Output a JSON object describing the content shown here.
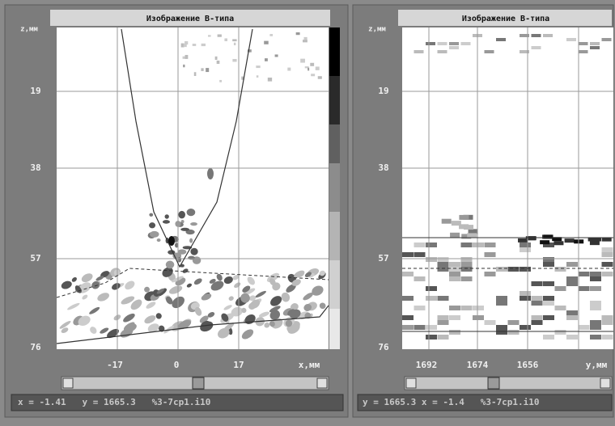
{
  "panels": [
    {
      "title": "Изображение B-типа",
      "z_axis_label": "z,мм",
      "z_ticks": [
        "19",
        "38",
        "57",
        "76"
      ],
      "h_ticks": [
        "-17",
        "0",
        "17"
      ],
      "h_axis_label": "x,мм",
      "status": "x = -1.41   y = 1665.3   %3-7cp1.i10"
    },
    {
      "title": "Изображение B-типа",
      "z_axis_label": "z,мм",
      "z_ticks": [
        "19",
        "38",
        "57",
        "76"
      ],
      "h_ticks": [
        "1692",
        "1674",
        "1656"
      ],
      "h_axis_label": "y,мм",
      "status": "y = 1665.3 x = -1.4   %3-7cp1.i10"
    }
  ]
}
